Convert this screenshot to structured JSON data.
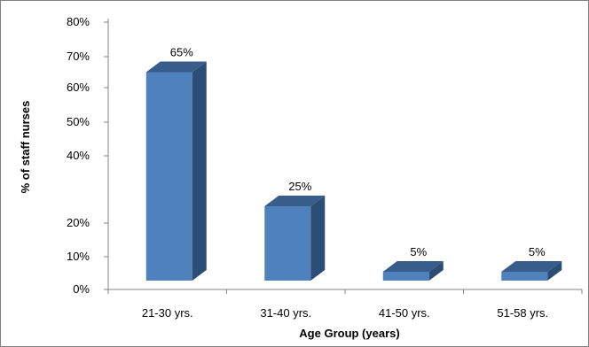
{
  "chart_data": {
    "type": "bar",
    "three_d": true,
    "categories": [
      "21-30 yrs.",
      "31-40 yrs.",
      "41-50 yrs.",
      "51-58 yrs."
    ],
    "values": [
      65,
      25,
      5,
      5
    ],
    "data_labels": [
      "65%",
      "25%",
      "5%",
      "5%"
    ],
    "title": "",
    "xlabel": "Age Group (years)",
    "ylabel": "% of staff nurses",
    "ylim": [
      0,
      80
    ],
    "y_ticks": [
      {
        "value": 0,
        "label": "0%"
      },
      {
        "value": 10,
        "label": "10%"
      },
      {
        "value": 20,
        "label": "20%"
      },
      {
        "value": 40,
        "label": "40%"
      },
      {
        "value": 50,
        "label": "50%"
      },
      {
        "value": 60,
        "label": "60%"
      },
      {
        "value": 70,
        "label": "70%"
      },
      {
        "value": 80,
        "label": "80%"
      }
    ],
    "grid": false,
    "legend": "none",
    "colors": {
      "front": "#4f81bd",
      "side": "#2c4d75",
      "top": "#385d8a",
      "axis": "#868686"
    }
  }
}
